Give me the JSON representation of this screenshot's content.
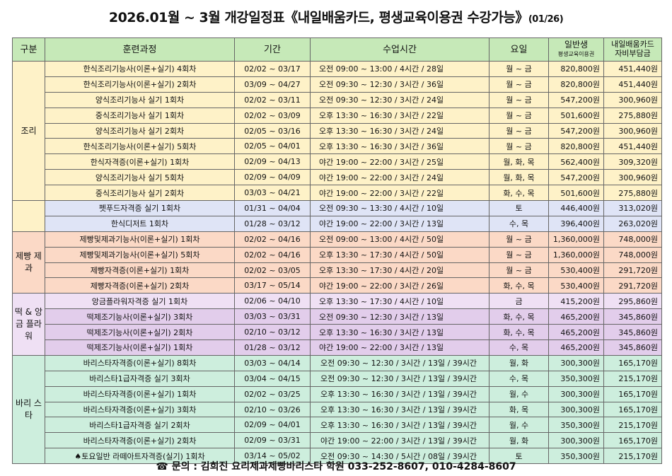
{
  "title": {
    "main": "2026.01월 ~ 3월 개강일정표《내일배움카드, 평생교육이용권 수강가능》",
    "date": "(01/26)"
  },
  "headers": {
    "category": "구분",
    "course": "훈련과정",
    "period": "기간",
    "time": "수업시간",
    "days": "요일",
    "general_1": "일반생",
    "general_2": "평생교육이용권",
    "card_1": "내일배움카드",
    "card_2": "자비부담금"
  },
  "categories": {
    "jori": "조리",
    "jebbang": "제빵 제과",
    "tteok": "떡 & 앙금 플라워",
    "barista": "바리 스타"
  },
  "rows": [
    {
      "course": "한식조리기능사(이론+실기) 4회차",
      "period": "02/02 ~ 03/17",
      "time": "오전 09:00 ~ 13:00 / 4시간 / 28일",
      "days": "월 ~ 금",
      "general": "820,800원",
      "card": "451,440원"
    },
    {
      "course": "한식조리기능사(이론+실기) 2회차",
      "period": "03/09 ~ 04/27",
      "time": "오전 09:30 ~ 12:30 / 3시간 / 36일",
      "days": "월 ~ 금",
      "general": "820,800원",
      "card": "451,440원"
    },
    {
      "course": "양식조리기능사 실기 1회차",
      "period": "02/02 ~ 03/11",
      "time": "오전 09:30 ~ 12:30 / 3시간 / 24일",
      "days": "월 ~ 금",
      "general": "547,200원",
      "card": "300,960원"
    },
    {
      "course": "중식조리기능사 실기 1회차",
      "period": "02/02 ~ 03/09",
      "time": "오후 13:30 ~ 16:30 / 3시간 / 22일",
      "days": "월 ~ 금",
      "general": "501,600원",
      "card": "275,880원"
    },
    {
      "course": "양식조리기능사 실기 2회차",
      "period": "02/05 ~ 03/16",
      "time": "오후 13:30 ~ 16:30 / 3시간 / 24일",
      "days": "월 ~ 금",
      "general": "547,200원",
      "card": "300,960원"
    },
    {
      "course": "한식조리기능사(이론+실기) 5회차",
      "period": "02/05 ~ 04/01",
      "time": "오후 13:30 ~ 16:30 / 3시간 / 36일",
      "days": "월 ~ 금",
      "general": "820,800원",
      "card": "451,440원"
    },
    {
      "course": "한식자격증(이론+실기) 1회차",
      "period": "02/09 ~ 04/13",
      "time": "야간 19:00 ~ 22:00 / 3시간 / 25일",
      "days": "월, 화, 목",
      "general": "562,400원",
      "card": "309,320원"
    },
    {
      "course": "양식조리기능사 실기 5회차",
      "period": "02/09 ~ 04/09",
      "time": "야간 19:00 ~ 22:00 / 3시간 / 24일",
      "days": "월, 화, 목",
      "general": "547,200원",
      "card": "300,960원"
    },
    {
      "course": "중식조리기능사 실기 2회차",
      "period": "03/03 ~ 04/21",
      "time": "야간 19:00 ~ 22:00 / 3시간 / 22일",
      "days": "화, 수, 목",
      "general": "501,600원",
      "card": "275,880원"
    },
    {
      "course": "펫푸드자격증 실기 1회차",
      "period": "01/31 ~ 04/04",
      "time": "오전 09:30 ~ 13:30 / 4시간 / 10일",
      "days": "토",
      "general": "446,400원",
      "card": "313,020원"
    },
    {
      "course": "한식디저트 1회차",
      "period": "01/28 ~ 03/12",
      "time": "야간 19:00 ~ 22:00 / 3시간 / 13일",
      "days": "수, 목",
      "general": "396,400원",
      "card": "263,020원"
    },
    {
      "course": "제빵및제과기능사(이론+실기) 1회차",
      "period": "02/02 ~ 04/16",
      "time": "오전 09:00 ~ 13:00 / 4시간 / 50일",
      "days": "월 ~ 금",
      "general": "1,360,000원",
      "card": "748,000원"
    },
    {
      "course": "제빵및제과기능사(이론+실기) 5회차",
      "period": "02/02 ~ 04/16",
      "time": "오후 13:30 ~ 17:30 / 4시간 / 50일",
      "days": "월 ~ 금",
      "general": "1,360,000원",
      "card": "748,000원"
    },
    {
      "course": "제빵자격증(이론+실기) 1회차",
      "period": "02/02 ~ 03/05",
      "time": "오후 13:30 ~ 17:30 / 4시간 / 20일",
      "days": "월 ~ 금",
      "general": "530,400원",
      "card": "291,720원"
    },
    {
      "course": "제빵자격증(이론+실기) 2회차",
      "period": "03/17 ~ 05/14",
      "time": "야간 19:00 ~ 22:00 / 3시간 / 26일",
      "days": "화, 수, 목",
      "general": "530,400원",
      "card": "291,720원"
    },
    {
      "course": "앙금플라워자격증 실기 1회차",
      "period": "02/06 ~ 04/10",
      "time": "오후 13:30 ~ 17:30 / 4시간 / 10일",
      "days": "금",
      "general": "415,200원",
      "card": "295,860원"
    },
    {
      "course": "떡제조기능사(이론+실기) 3회차",
      "period": "03/03 ~ 03/31",
      "time": "오전 09:30 ~ 12:30 / 3시간 / 13일",
      "days": "화, 수, 목",
      "general": "465,200원",
      "card": "345,860원"
    },
    {
      "course": "떡제조기능사(이론+실기) 2회차",
      "period": "02/10 ~ 03/12",
      "time": "오후 13:30 ~ 16:30 / 3시간 / 13일",
      "days": "화, 수, 목",
      "general": "465,200원",
      "card": "345,860원"
    },
    {
      "course": "떡제조기능사(이론+실기) 1회차",
      "period": "01/28 ~ 03/12",
      "time": "야간 19:00 ~ 22:00 / 3시간 / 13일",
      "days": "수, 목",
      "general": "465,200원",
      "card": "345,860원"
    },
    {
      "course": "바리스타자격증(이론+실기) 8회차",
      "period": "03/03 ~ 04/14",
      "time": "오전 09:30 ~ 12:30 / 3시간 / 13일 / 39시간",
      "days": "월, 화",
      "general": "300,300원",
      "card": "165,170원"
    },
    {
      "course": "바리스타1급자격증 실기 3회차",
      "period": "03/04 ~ 04/15",
      "time": "오전 09:30 ~ 12:30 / 3시간 / 13일 / 39시간",
      "days": "수, 목",
      "general": "350,300원",
      "card": "215,170원"
    },
    {
      "course": "바리스타자격증(이론+실기) 1회차",
      "period": "02/02 ~ 03/25",
      "time": "오후 13:30 ~ 16:30 / 3시간 / 13일 / 39시간",
      "days": "월, 수",
      "general": "300,300원",
      "card": "165,170원"
    },
    {
      "course": "바리스타자격증(이론+실기) 3회차",
      "period": "02/10 ~ 03/26",
      "time": "오후 13:30 ~ 16:30 / 3시간 / 13일 / 39시간",
      "days": "화, 목",
      "general": "300,300원",
      "card": "165,170원"
    },
    {
      "course": "바리스타1급자격증 실기 2회차",
      "period": "02/09 ~ 04/01",
      "time": "오후 13:30 ~ 16:30 / 3시간 / 13일 / 39시간",
      "days": "월, 수",
      "general": "350,300원",
      "card": "215,170원"
    },
    {
      "course": "바리스타자격증(이론+실기) 2회차",
      "period": "02/09 ~ 03/31",
      "time": "야간 19:00 ~ 22:00 / 3시간 / 13일 / 39시간",
      "days": "월, 화",
      "general": "300,300원",
      "card": "165,170원"
    },
    {
      "course": "♠토요일반 라떼아트자격증(실기) 1회차",
      "period": "03/14 ~ 05/02",
      "time": "오전 09:30 ~ 14:30 / 5시간 / 08일 / 39시간",
      "days": "토",
      "general": "350,300원",
      "card": "215,170원"
    }
  ],
  "footer": {
    "icon": "☎",
    "text": "문의 : 김희진 요리제과제빵바리스타 학원 033-252-8607, 010-4284-8607"
  }
}
